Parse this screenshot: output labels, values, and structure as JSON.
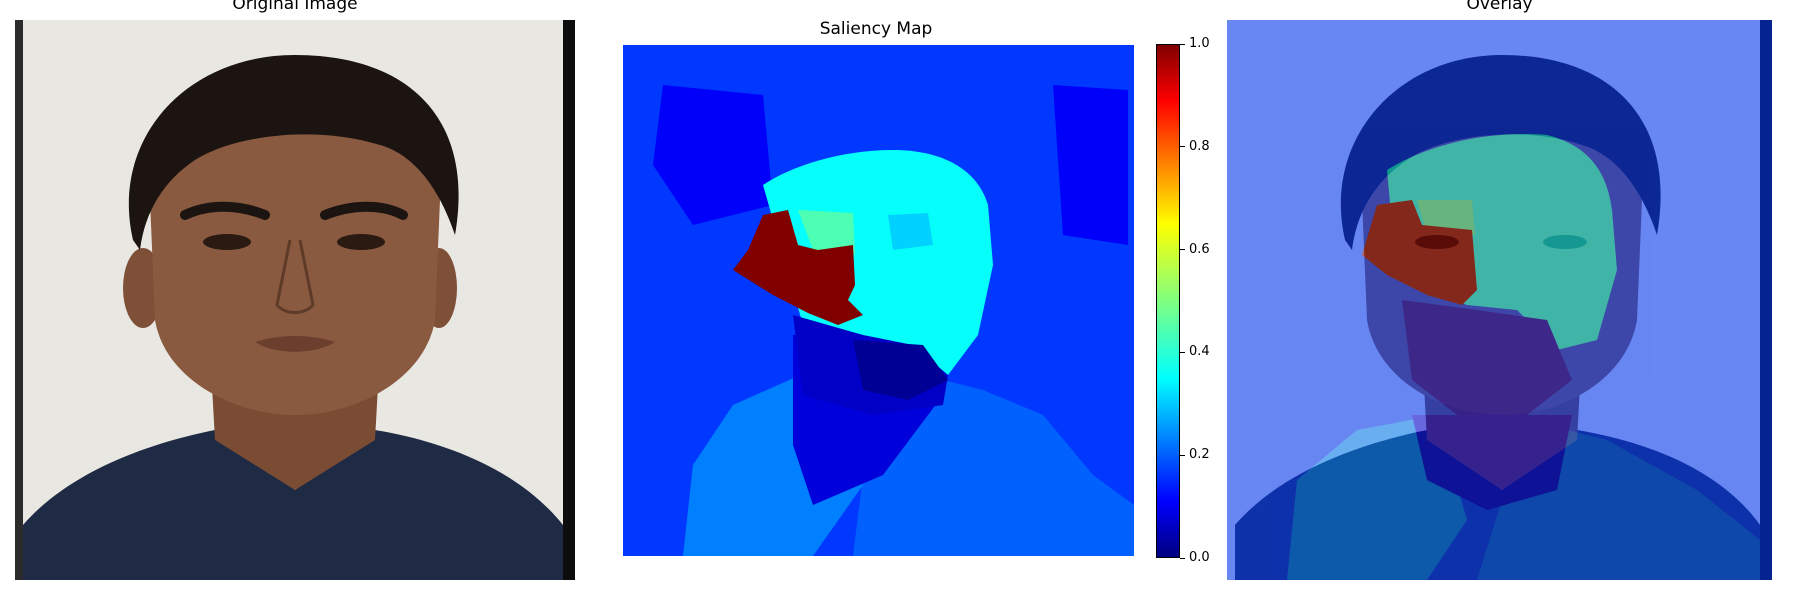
{
  "panels": {
    "original": {
      "title": "Original Image"
    },
    "saliency": {
      "title": "Saliency Map"
    },
    "overlay": {
      "title": "Overlay"
    }
  },
  "chart_data": {
    "type": "heatmap",
    "title": "Saliency Map",
    "colormap": "jet",
    "colorbar": {
      "range": [
        0.0,
        1.0
      ],
      "ticks": [
        "0.0",
        "0.2",
        "0.4",
        "0.6",
        "0.8",
        "1.0"
      ]
    },
    "regions": [
      {
        "name": "background",
        "value": 0.18
      },
      {
        "name": "background-dark-patch",
        "value": 0.12
      },
      {
        "name": "forehead-face",
        "value": 0.38
      },
      {
        "name": "right-eye",
        "value": 0.33
      },
      {
        "name": "left-eye-inner",
        "value": 0.45
      },
      {
        "name": "left-eye-cheek",
        "value": 1.0
      },
      {
        "name": "lower-face",
        "value": 0.07
      },
      {
        "name": "mouth",
        "value": 0.02
      },
      {
        "name": "shirt-left",
        "value": 0.25
      },
      {
        "name": "shirt-right",
        "value": 0.22
      },
      {
        "name": "neck",
        "value": 0.09
      }
    ]
  },
  "colors": {
    "jet_low": "#00007f",
    "jet_high": "#7f0000",
    "skin": "#8a5a40",
    "hair": "#1b1410",
    "shirt": "#1f2a44",
    "wall": "#e9e7e2"
  }
}
